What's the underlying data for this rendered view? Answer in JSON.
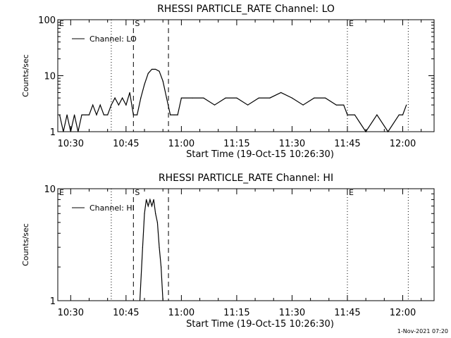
{
  "footer_timestamp": "1-Nov-2021 07:20",
  "chart_data": [
    {
      "type": "line",
      "title": "RHESSI PARTICLE_RATE Channel: LO",
      "xlabel": "Start Time (19-Oct-15 10:26:30)",
      "ylabel": "Counts/sec",
      "yscale": "log",
      "ylim": [
        1,
        100
      ],
      "y_ticks": [
        {
          "v": 1,
          "label": "1"
        },
        {
          "v": 10,
          "label": "10"
        },
        {
          "v": 100,
          "label": "100"
        }
      ],
      "xlim": [
        "10:26:30",
        "12:08:30"
      ],
      "x_ticks": [
        "10:30",
        "10:45",
        "11:00",
        "11:15",
        "11:30",
        "11:45",
        "12:00"
      ],
      "legend": {
        "label": "Channel: LO",
        "position": "top-left"
      },
      "markers": [
        {
          "label": "E",
          "time": "10:26:30",
          "style": "dotted"
        },
        {
          "label": "",
          "time": "10:41:00",
          "style": "dotted"
        },
        {
          "label": "S",
          "time": "10:47:00",
          "style": "dashed"
        },
        {
          "label": "",
          "time": "10:56:30",
          "style": "dashed"
        },
        {
          "label": "E",
          "time": "11:45:00",
          "style": "dotted"
        },
        {
          "label": "",
          "time": "12:01:30",
          "style": "dotted"
        }
      ],
      "series": [
        {
          "name": "Channel: LO",
          "x": [
            "10:27:00",
            "10:28:00",
            "10:29:00",
            "10:30:00",
            "10:31:00",
            "10:32:00",
            "10:33:00",
            "10:34:00",
            "10:35:00",
            "10:36:00",
            "10:37:00",
            "10:38:00",
            "10:39:00",
            "10:40:00",
            "10:41:00",
            "10:42:00",
            "10:43:00",
            "10:44:00",
            "10:45:00",
            "10:46:00",
            "10:47:00",
            "10:48:00",
            "10:49:00",
            "10:50:00",
            "10:51:00",
            "10:52:00",
            "10:53:00",
            "10:54:00",
            "10:55:00",
            "10:56:00",
            "10:57:00",
            "10:58:00",
            "10:59:00",
            "11:00:00",
            "11:03:00",
            "11:06:00",
            "11:09:00",
            "11:12:00",
            "11:15:00",
            "11:18:00",
            "11:21:00",
            "11:24:00",
            "11:27:00",
            "11:30:00",
            "11:33:00",
            "11:36:00",
            "11:39:00",
            "11:42:00",
            "11:44:00",
            "11:45:00",
            "11:47:00",
            "11:50:00",
            "11:53:00",
            "11:56:00",
            "11:59:00",
            "12:00:00",
            "12:01:00"
          ],
          "values": [
            2,
            1,
            2,
            1,
            2,
            1,
            2,
            2,
            2,
            3,
            2,
            3,
            2,
            2,
            3,
            4,
            3,
            4,
            3,
            5,
            2,
            2,
            4,
            7,
            11,
            13,
            13,
            12,
            8,
            4,
            2,
            2,
            2,
            4,
            4,
            4,
            3,
            4,
            4,
            3,
            4,
            4,
            5,
            4,
            3,
            4,
            4,
            3,
            3,
            2,
            2,
            1,
            2,
            1,
            2,
            2,
            3
          ]
        }
      ]
    },
    {
      "type": "line",
      "title": "RHESSI PARTICLE_RATE Channel: HI",
      "xlabel": "Start Time (19-Oct-15 10:26:30)",
      "ylabel": "Counts/sec",
      "yscale": "log",
      "ylim": [
        1,
        10
      ],
      "y_ticks": [
        {
          "v": 1,
          "label": "1"
        },
        {
          "v": 10,
          "label": "10"
        }
      ],
      "xlim": [
        "10:26:30",
        "12:08:30"
      ],
      "x_ticks": [
        "10:30",
        "10:45",
        "11:00",
        "11:15",
        "11:30",
        "11:45",
        "12:00"
      ],
      "legend": {
        "label": "Channel: HI",
        "position": "top-left"
      },
      "markers": [
        {
          "label": "E",
          "time": "10:26:30",
          "style": "dotted"
        },
        {
          "label": "",
          "time": "10:41:00",
          "style": "dotted"
        },
        {
          "label": "S",
          "time": "10:47:00",
          "style": "dashed"
        },
        {
          "label": "",
          "time": "10:56:30",
          "style": "dashed"
        },
        {
          "label": "E",
          "time": "11:45:00",
          "style": "dotted"
        },
        {
          "label": "",
          "time": "12:01:30",
          "style": "dotted"
        }
      ],
      "series": [
        {
          "name": "Channel: HI",
          "x": [
            "10:48:45",
            "10:49:30",
            "10:50:00",
            "10:50:30",
            "10:51:00",
            "10:51:30",
            "10:52:00",
            "10:52:30",
            "10:53:00",
            "10:53:30",
            "10:54:00",
            "10:54:30",
            "10:55:00"
          ],
          "values": [
            1,
            3,
            6,
            8,
            7,
            8,
            7,
            8,
            6,
            5,
            3,
            2,
            1
          ]
        }
      ]
    }
  ]
}
